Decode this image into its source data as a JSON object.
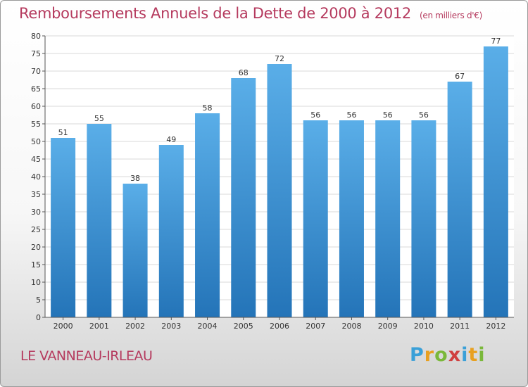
{
  "header": {
    "title": "Remboursements Annuels de la Dette de 2000 à 2012",
    "subtitle": "(en milliers d'€)"
  },
  "footer": {
    "place": "LE VANNEAU-IRLEAU",
    "logo_text": [
      "P",
      "r",
      "o",
      "x",
      "i",
      "t",
      "i"
    ]
  },
  "colors": {
    "bar_top": "#5aaee8",
    "bar_bottom": "#2474b8",
    "title": "#b53a5e",
    "grid": "#d8d8d8"
  },
  "chart_data": {
    "type": "bar",
    "categories": [
      "2000",
      "2001",
      "2002",
      "2003",
      "2004",
      "2005",
      "2006",
      "2007",
      "2008",
      "2009",
      "2010",
      "2011",
      "2012"
    ],
    "values": [
      51,
      55,
      38,
      49,
      58,
      68,
      72,
      56,
      56,
      56,
      56,
      67,
      77
    ],
    "ylim": [
      0,
      80
    ],
    "yticks": [
      0,
      5,
      10,
      15,
      20,
      25,
      30,
      35,
      40,
      45,
      50,
      55,
      60,
      65,
      70,
      75,
      80
    ],
    "grid": true,
    "xlabel": "",
    "ylabel": ""
  }
}
